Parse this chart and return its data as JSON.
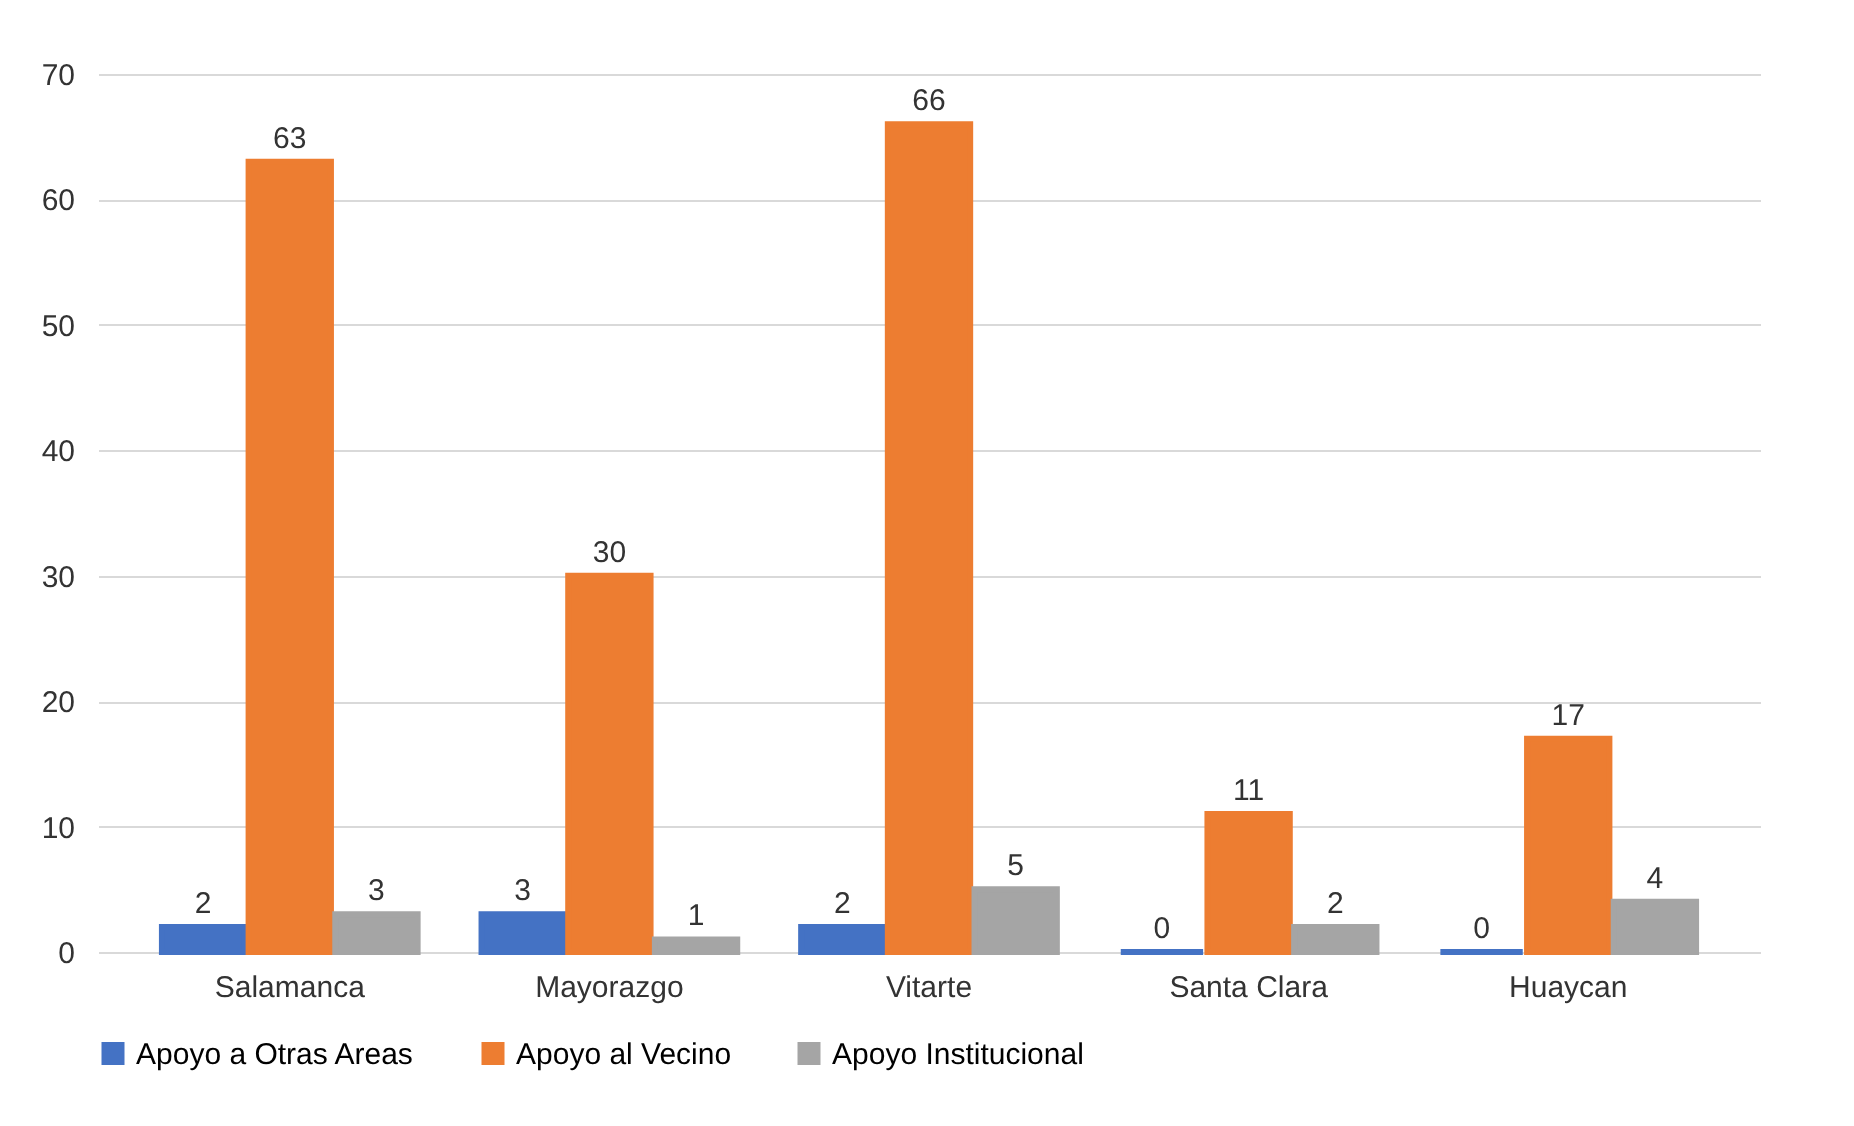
{
  "chart_data": {
    "type": "bar",
    "categories": [
      "Salamanca",
      "Mayorazgo",
      "Vitarte",
      "Santa Clara",
      "Huaycan"
    ],
    "series": [
      {
        "name": "Apoyo a Otras Areas",
        "color": "#4472c4",
        "values": [
          2,
          3,
          2,
          0,
          0
        ]
      },
      {
        "name": "Apoyo al Vecino",
        "color": "#ed7d31",
        "values": [
          63,
          30,
          66,
          11,
          17
        ]
      },
      {
        "name": "Apoyo Institucional",
        "color": "#a5a5a5",
        "values": [
          3,
          1,
          5,
          2,
          4
        ]
      }
    ],
    "ylim": [
      0,
      70
    ],
    "yticks": [
      0,
      10,
      20,
      30,
      40,
      50,
      60,
      70
    ],
    "grid": "y",
    "legend": "bottom",
    "data_labels": true
  }
}
